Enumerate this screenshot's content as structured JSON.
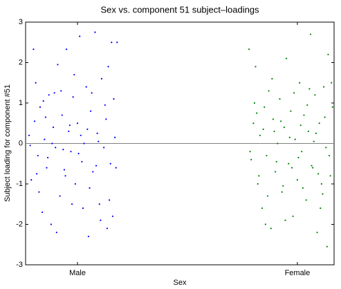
{
  "chart_data": {
    "type": "scatter",
    "title": "Sex vs. component 51 subject–loadings",
    "x_label": "Sex",
    "y_label": "Subject loading for component #51",
    "xlim": [
      0.764,
      2.167
    ],
    "xticks": [
      {
        "value": 1,
        "label": "Male"
      },
      {
        "value": 2,
        "label": "Female"
      }
    ],
    "ylim": [
      -3,
      3
    ],
    "yticks": [
      -3,
      -2,
      -1,
      0,
      1,
      2,
      3
    ],
    "reference_line": 0,
    "series": [
      {
        "color": "#0000ff",
        "x": [
          0.78,
          0.79,
          0.8,
          0.81,
          0.82,
          0.83,
          0.84,
          0.85,
          0.86,
          0.87,
          0.88,
          0.89,
          0.9,
          0.91,
          0.92,
          0.93,
          0.94,
          0.95,
          0.96,
          0.97,
          0.98,
          0.99,
          1.0,
          1.01,
          1.02,
          1.03,
          1.04,
          1.05,
          1.06,
          1.07,
          1.08,
          1.09,
          1.1,
          1.11,
          1.12,
          1.13,
          1.14,
          1.15,
          1.16,
          1.17,
          1.18,
          0.785,
          0.805,
          0.825,
          0.845,
          0.865,
          0.885,
          0.905,
          0.925,
          0.945,
          0.965,
          0.985,
          1.005,
          1.025,
          1.045,
          1.065,
          1.085,
          1.105,
          1.125,
          1.145,
          1.165,
          1.175,
          1.155,
          1.135,
          1.095,
          1.055,
          1.015,
          0.975,
          0.935,
          0.895,
          0.855,
          0.815
        ],
        "values": [
          0.2,
          -0.9,
          2.33,
          1.5,
          -0.3,
          0.9,
          -1.7,
          0.1,
          -0.6,
          1.2,
          -2.0,
          0.4,
          -0.1,
          1.95,
          -1.3,
          0.7,
          -0.65,
          2.33,
          0.3,
          -0.2,
          1.15,
          -1.0,
          0.5,
          2.65,
          -0.45,
          0.0,
          1.4,
          -2.3,
          0.8,
          -0.7,
          2.75,
          0.25,
          -1.5,
          1.6,
          -0.1,
          0.6,
          1.9,
          -0.5,
          -1.8,
          0.15,
          2.5,
          -0.05,
          0.55,
          -1.2,
          1.05,
          -0.35,
          0.0,
          -2.2,
          1.3,
          -0.8,
          0.45,
          1.7,
          -0.25,
          -1.6,
          0.35,
          1.25,
          -0.55,
          -1.9,
          0.95,
          -1.4,
          1.1,
          -0.6,
          2.5,
          -2.1,
          0.05,
          -1.1,
          0.2,
          -1.5,
          -0.15,
          1.25,
          0.65,
          -0.75
        ]
      },
      {
        "color": "#008000",
        "x": [
          1.78,
          1.79,
          1.8,
          1.81,
          1.82,
          1.83,
          1.84,
          1.85,
          1.86,
          1.87,
          1.88,
          1.89,
          1.9,
          1.91,
          1.92,
          1.93,
          1.94,
          1.95,
          1.96,
          1.97,
          1.98,
          1.99,
          2.0,
          2.01,
          2.02,
          2.03,
          2.04,
          2.05,
          2.06,
          2.07,
          2.08,
          2.09,
          2.1,
          2.11,
          2.12,
          2.13,
          2.14,
          2.15,
          2.16,
          1.785,
          1.805,
          1.825,
          1.845,
          1.865,
          1.885,
          1.905,
          1.925,
          1.945,
          1.965,
          1.985,
          2.005,
          2.025,
          2.045,
          2.065,
          2.085,
          2.105,
          2.125,
          2.145,
          2.155,
          2.135,
          2.095,
          2.055,
          2.015,
          1.975,
          1.935,
          1.895,
          1.855,
          1.815,
          2.115,
          2.075
        ],
        "values": [
          2.33,
          -0.4,
          0.5,
          1.9,
          -1.0,
          0.2,
          -1.6,
          0.9,
          -0.3,
          1.3,
          -2.1,
          0.6,
          -0.7,
          0.0,
          1.1,
          -1.2,
          0.4,
          2.1,
          -0.5,
          0.8,
          -1.8,
          0.1,
          -0.9,
          1.5,
          -0.2,
          0.7,
          -1.4,
          0.3,
          2.7,
          -0.6,
          1.2,
          -2.2,
          0.5,
          -1.0,
          1.4,
          -0.1,
          2.2,
          -0.8,
          0.9,
          -0.2,
          1.0,
          -0.8,
          0.35,
          -1.3,
          1.6,
          -0.45,
          0.55,
          -1.9,
          0.15,
          1.25,
          -0.35,
          -1.1,
          0.95,
          -0.55,
          0.25,
          -1.6,
          0.65,
          -0.3,
          1.5,
          -2.55,
          -0.75,
          1.35,
          0.45,
          -0.6,
          -1.05,
          0.3,
          -2.0,
          0.75,
          -1.25,
          0.05
        ]
      }
    ]
  }
}
